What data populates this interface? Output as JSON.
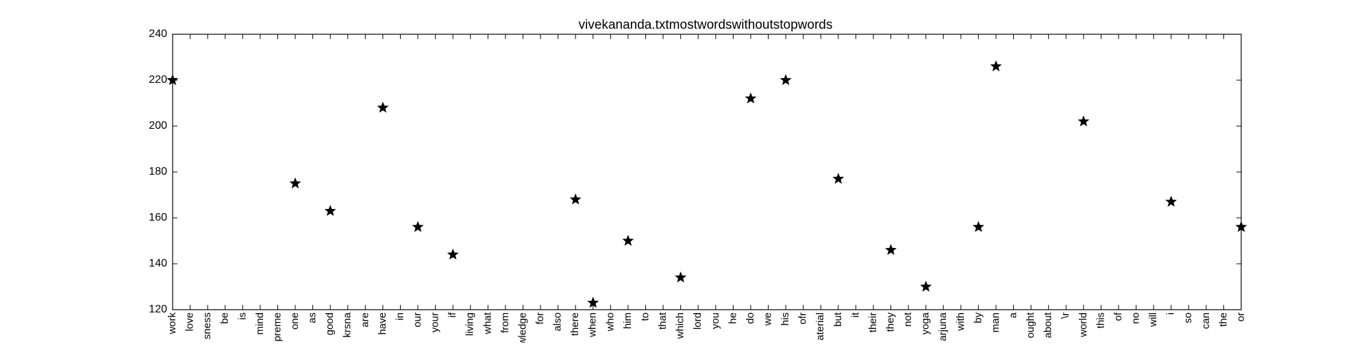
{
  "chart_data": {
    "type": "scatter",
    "title": "vivekananda.txtmostwordswithoutstopwords",
    "xlabel": "",
    "ylabel": "",
    "ylim": [
      120,
      240
    ],
    "yticks": [
      120,
      140,
      160,
      180,
      200,
      220,
      240
    ],
    "grid": false,
    "marker": "star",
    "marker_color": "#000000",
    "categories": [
      "work",
      "love",
      "consciousness",
      "be",
      "is",
      "mind",
      "supreme",
      "one",
      "as",
      "good",
      "krsna",
      "are",
      "have",
      "in",
      "our",
      "your",
      "if",
      "living",
      "what",
      "from",
      "knowledge",
      "for",
      "also",
      "there",
      "when",
      "who",
      "him",
      "to",
      "that",
      "which",
      "lord",
      "you",
      "he",
      "do",
      "we",
      "his",
      "ofr",
      "material",
      "but",
      "it",
      "their",
      "they",
      "not",
      "yoga",
      "arjuna",
      "with",
      "by",
      "man",
      "a",
      "thought",
      "about",
      "\\r",
      "world",
      "this",
      "of",
      "no",
      "will",
      "i",
      "so",
      "can",
      "the",
      "or"
    ],
    "tick_labels_shown": [
      "work",
      "love",
      "sness",
      "be",
      "is",
      "mind",
      "preme",
      "one",
      "as",
      "good",
      "krsna",
      "are",
      "have",
      "in",
      "our",
      "your",
      "if",
      "living",
      "what",
      "from",
      "wledge",
      "for",
      "also",
      "there",
      "when",
      "who",
      "him",
      "to",
      "that",
      "which",
      "lord",
      "you",
      "he",
      "do",
      "we",
      "his",
      "ofr",
      "aterial",
      "but",
      "it",
      "their",
      "they",
      "not",
      "yoga",
      "arjuna",
      "with",
      "by",
      "man",
      "a",
      "ought",
      "about",
      "\\r",
      "world",
      "this",
      "of",
      "no",
      "will",
      "i",
      "so",
      "can",
      "the",
      "or"
    ],
    "points": [
      {
        "x": "work",
        "y": 220
      },
      {
        "x": "one",
        "y": 175
      },
      {
        "x": "good",
        "y": 163
      },
      {
        "x": "have",
        "y": 208
      },
      {
        "x": "our",
        "y": 156
      },
      {
        "x": "if",
        "y": 144
      },
      {
        "x": "there",
        "y": 168
      },
      {
        "x": "when",
        "y": 123
      },
      {
        "x": "him",
        "y": 150
      },
      {
        "x": "which",
        "y": 134
      },
      {
        "x": "do",
        "y": 212
      },
      {
        "x": "his",
        "y": 220
      },
      {
        "x": "but",
        "y": 177
      },
      {
        "x": "they",
        "y": 146
      },
      {
        "x": "yoga",
        "y": 130
      },
      {
        "x": "by",
        "y": 156
      },
      {
        "x": "man",
        "y": 226
      },
      {
        "x": "world",
        "y": 202
      },
      {
        "x": "i",
        "y": 167
      },
      {
        "x": "or",
        "y": 156
      }
    ]
  }
}
